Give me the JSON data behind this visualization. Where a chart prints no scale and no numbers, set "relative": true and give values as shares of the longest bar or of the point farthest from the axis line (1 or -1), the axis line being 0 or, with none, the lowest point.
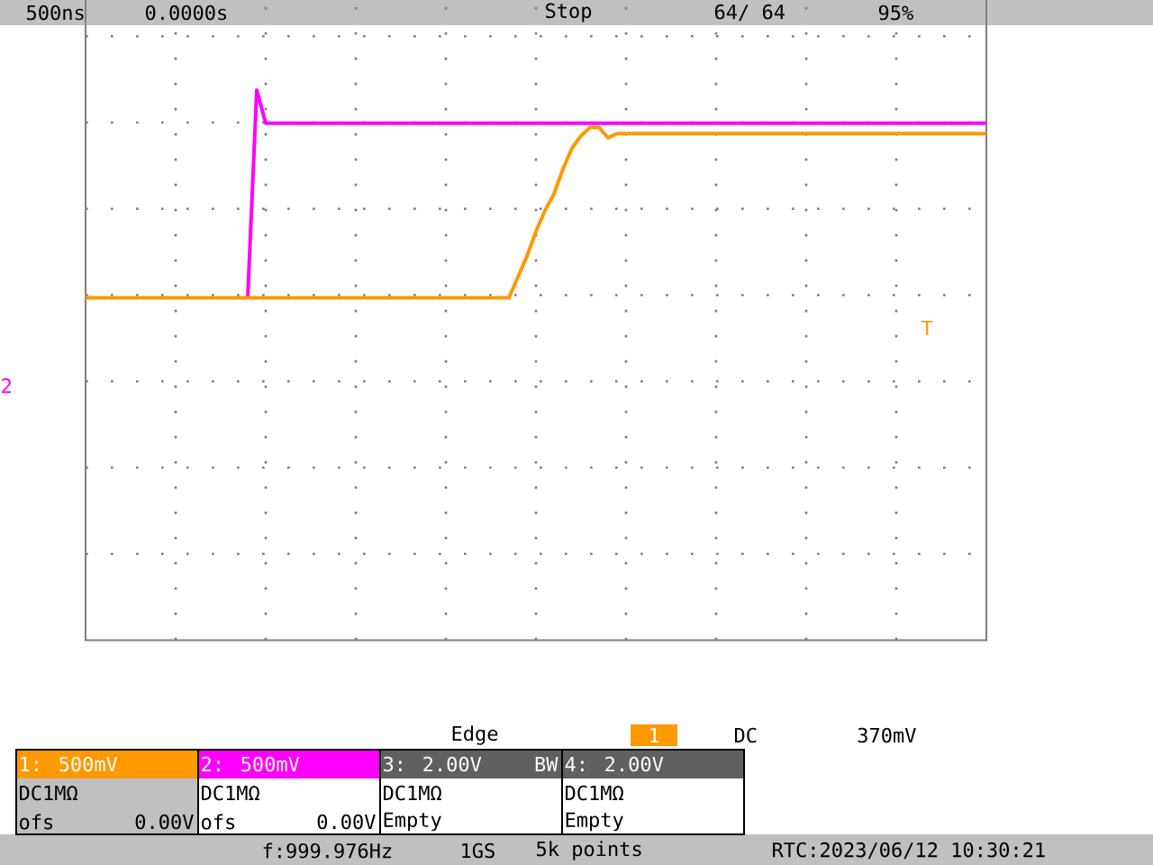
{
  "chart_data": {
    "type": "line",
    "relative": true,
    "grid": true,
    "categories": [
      null,
      null,
      null,
      null,
      null,
      null,
      null,
      null,
      null,
      null,
      null,
      null,
      null,
      null,
      null,
      null,
      null,
      null,
      null,
      null,
      null,
      null,
      null,
      null,
      null,
      null,
      null,
      null,
      null,
      null,
      null,
      null,
      null,
      null,
      null,
      null,
      null,
      null,
      null,
      null,
      null,
      null,
      null,
      null,
      null,
      null,
      null,
      null,
      null,
      null,
      null,
      null,
      null,
      null,
      null,
      null,
      null,
      null,
      null,
      null,
      null,
      null,
      null,
      null,
      null,
      null,
      null,
      null,
      null,
      null,
      null,
      null,
      null,
      null,
      null,
      null,
      null,
      null,
      null,
      null,
      null,
      null,
      null,
      null,
      null,
      null,
      null,
      null,
      null,
      null,
      null,
      null,
      null,
      null,
      null,
      null,
      null,
      null,
      null,
      null,
      null
    ],
    "series": [
      {
        "color": "#ff00ff",
        "values": [
          null,
          null,
          null,
          null,
          null,
          null,
          null,
          null,
          null,
          null,
          null,
          null,
          null,
          null,
          null,
          null,
          null,
          null,
          0,
          1,
          0.84,
          0.84,
          0.84,
          0.84,
          0.84,
          0.84,
          0.84,
          0.84,
          0.84,
          0.84,
          0.84,
          0.84,
          0.84,
          0.84,
          0.84,
          0.84,
          0.84,
          0.84,
          0.84,
          0.84,
          0.84,
          0.84,
          0.84,
          0.84,
          0.84,
          0.84,
          0.84,
          0.84,
          0.84,
          0.84,
          0.84,
          0.84,
          0.84,
          0.84,
          0.84,
          0.84,
          0.84,
          0.84,
          0.84,
          0.84,
          0.84,
          0.84,
          0.84,
          0.84,
          0.84,
          0.84,
          0.84,
          0.84,
          0.84,
          0.84,
          0.84,
          0.84,
          0.84,
          0.84,
          0.84,
          0.84,
          0.84,
          0.84,
          0.84,
          0.84,
          0.84,
          0.84,
          0.84,
          0.84,
          0.84,
          0.84,
          0.84,
          0.84,
          0.84,
          0.84,
          0.84,
          0.84,
          0.84,
          0.84,
          0.84,
          0.84,
          0.84,
          0.84,
          0.84,
          0.84,
          0.84
        ]
      },
      {
        "color": "#ff9900",
        "values": [
          0,
          0,
          0,
          0,
          0,
          0,
          0,
          0,
          0,
          0,
          0,
          0,
          0,
          0,
          0,
          0,
          0,
          0,
          0,
          0,
          0,
          0,
          0,
          0,
          0,
          0,
          0,
          0,
          0,
          0,
          0,
          0,
          0,
          0,
          0,
          0,
          0,
          0,
          0,
          0,
          0,
          0,
          0,
          0,
          0,
          0,
          0,
          0,
          0.1,
          0.2,
          0.32,
          0.42,
          0.5,
          0.62,
          0.72,
          0.78,
          0.82,
          0.82,
          0.77,
          0.79,
          0.79,
          0.79,
          0.79,
          0.79,
          0.79,
          0.79,
          0.79,
          0.79,
          0.79,
          0.79,
          0.79,
          0.79,
          0.79,
          0.79,
          0.79,
          0.79,
          0.79,
          0.79,
          0.79,
          0.79,
          0.79,
          0.79,
          0.79,
          0.79,
          0.79,
          0.79,
          0.79,
          0.79,
          0.79,
          0.79,
          0.79,
          0.79,
          0.79,
          0.79,
          0.79,
          0.79,
          0.79,
          0.79,
          0.79,
          0.79,
          0.79
        ]
      }
    ],
    "annotations": [
      "500ns",
      "0.0000s",
      "Stop",
      "64/  64",
      "95%",
      "Edge",
      "1",
      "DC",
      "370mV",
      "1: 500mV",
      "DC1MΩ",
      "ofs",
      "0.00V",
      "2: 500mV",
      "DC1MΩ",
      "ofs",
      "0.00V",
      "3: 2.00V",
      "BW",
      "DC1MΩ",
      "Empty",
      "4: 2.00V",
      "DC1MΩ",
      "Empty",
      "f:999.976Hz",
      "1GS",
      "5k points",
      "RTC:2023/06/12 10:30:21",
      "T",
      "2"
    ]
  }
}
